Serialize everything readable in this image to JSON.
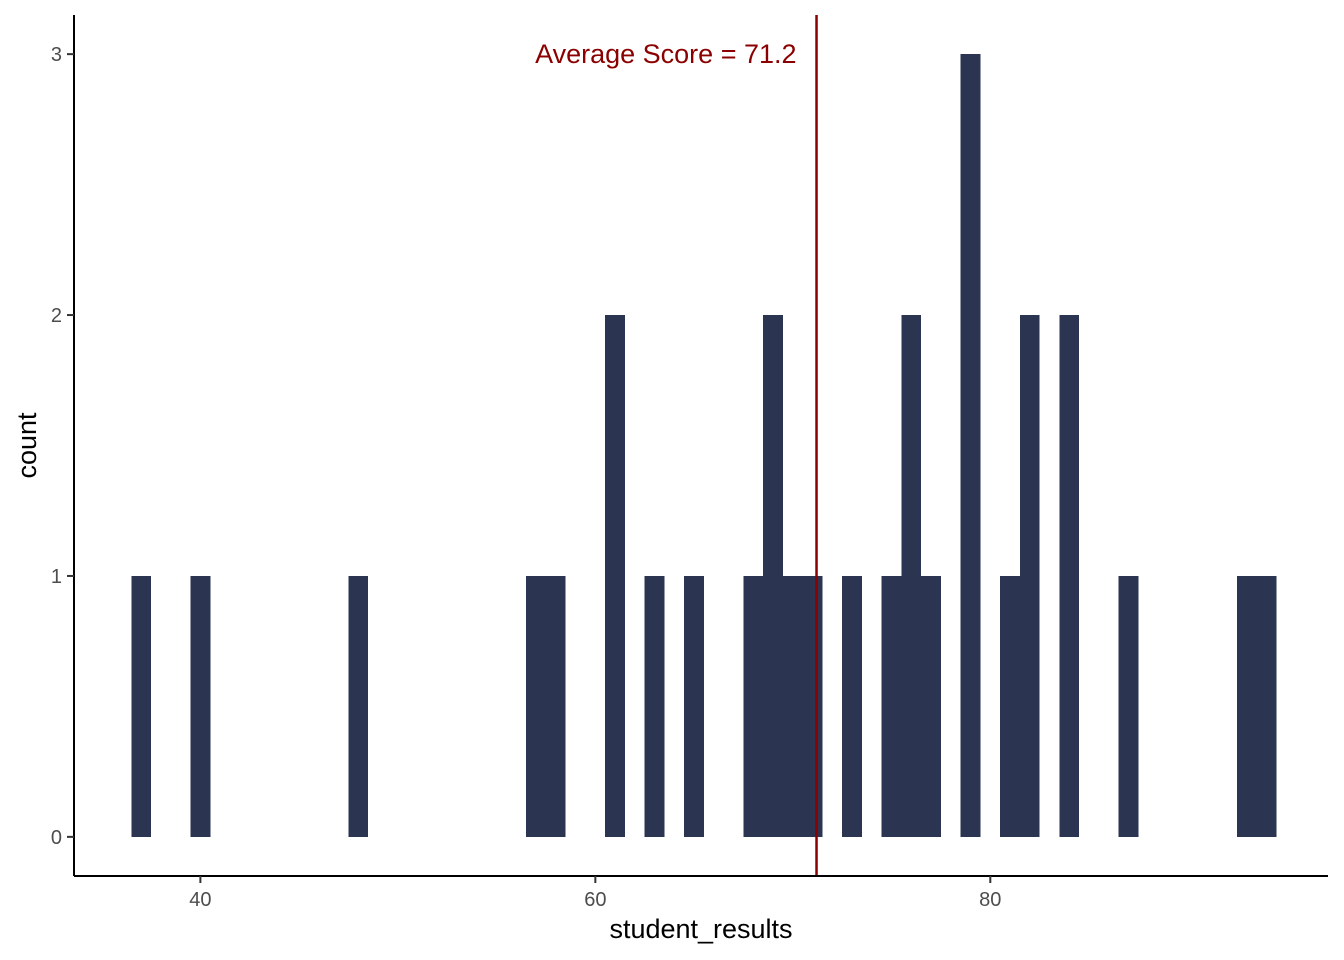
{
  "chart_data": {
    "type": "bar",
    "subtype": "histogram",
    "xlabel": "student_results",
    "ylabel": "count",
    "xlim": [
      33.6,
      97.1
    ],
    "ylim": [
      -0.15,
      3.15
    ],
    "x_ticks": [
      40,
      60,
      80
    ],
    "y_ticks": [
      0,
      1,
      2,
      3
    ],
    "grid": false,
    "bin_width": 1,
    "bins": [
      {
        "start": 36.5,
        "end": 37.5,
        "count": 1
      },
      {
        "start": 39.5,
        "end": 40.5,
        "count": 1
      },
      {
        "start": 47.5,
        "end": 48.5,
        "count": 1
      },
      {
        "start": 56.5,
        "end": 57.5,
        "count": 1
      },
      {
        "start": 57.5,
        "end": 58.5,
        "count": 1
      },
      {
        "start": 60.5,
        "end": 61.5,
        "count": 2
      },
      {
        "start": 62.5,
        "end": 63.5,
        "count": 1
      },
      {
        "start": 64.5,
        "end": 65.5,
        "count": 1
      },
      {
        "start": 67.5,
        "end": 68.5,
        "count": 1
      },
      {
        "start": 68.5,
        "end": 69.5,
        "count": 2
      },
      {
        "start": 69.5,
        "end": 70.5,
        "count": 1
      },
      {
        "start": 70.5,
        "end": 71.5,
        "count": 1
      },
      {
        "start": 72.5,
        "end": 73.5,
        "count": 1
      },
      {
        "start": 74.5,
        "end": 75.5,
        "count": 1
      },
      {
        "start": 75.5,
        "end": 76.5,
        "count": 2
      },
      {
        "start": 76.5,
        "end": 77.5,
        "count": 1
      },
      {
        "start": 78.5,
        "end": 79.5,
        "count": 3
      },
      {
        "start": 80.5,
        "end": 81.5,
        "count": 1
      },
      {
        "start": 81.5,
        "end": 82.5,
        "count": 2
      },
      {
        "start": 83.5,
        "end": 84.5,
        "count": 2
      },
      {
        "start": 86.5,
        "end": 87.5,
        "count": 1
      },
      {
        "start": 92.5,
        "end": 93.5,
        "count": 1
      },
      {
        "start": 93.5,
        "end": 94.5,
        "count": 1
      }
    ],
    "bar_color": "#2b3552",
    "reference_line": {
      "x": 71.2,
      "label": "Average Score = 71.2",
      "color": "#8b0000"
    }
  }
}
